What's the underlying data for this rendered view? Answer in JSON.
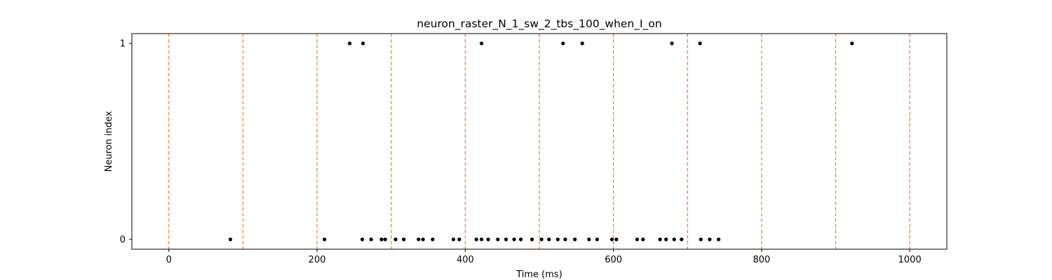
{
  "chart_data": {
    "type": "scatter",
    "title": "neuron_raster_N_1_sw_2_tbs_100_when_I_on",
    "xlabel": "Time (ms)",
    "ylabel": "Neuron index",
    "xlim": [
      -50,
      1050
    ],
    "ylim": [
      -0.05,
      1.05
    ],
    "x_ticks": [
      0,
      200,
      400,
      600,
      800,
      1000
    ],
    "y_ticks": [
      0,
      1
    ],
    "grid": false,
    "vlines": {
      "x": [
        0,
        100,
        200,
        300,
        400,
        500,
        600,
        700,
        800,
        900,
        1000
      ],
      "color": "#ff7f0e",
      "style": "dashed"
    },
    "marker_color": "#000000",
    "series": [
      {
        "neuron": 0,
        "x": [
          83,
          210,
          261,
          273,
          287,
          292,
          306,
          317,
          337,
          343,
          356,
          384,
          392,
          415,
          422,
          431,
          444,
          455,
          466,
          475,
          490,
          503,
          513,
          525,
          535,
          548,
          567,
          578,
          598,
          604,
          632,
          640,
          663,
          671,
          682,
          692,
          718,
          730,
          742
        ],
        "y": [
          0,
          0,
          0,
          0,
          0,
          0,
          0,
          0,
          0,
          0,
          0,
          0,
          0,
          0,
          0,
          0,
          0,
          0,
          0,
          0,
          0,
          0,
          0,
          0,
          0,
          0,
          0,
          0,
          0,
          0,
          0,
          0,
          0,
          0,
          0,
          0,
          0,
          0,
          0
        ]
      },
      {
        "neuron": 1,
        "x": [
          244,
          262,
          422,
          532,
          558,
          679,
          717,
          922
        ],
        "y": [
          1,
          1,
          1,
          1,
          1,
          1,
          1,
          1
        ]
      }
    ]
  }
}
